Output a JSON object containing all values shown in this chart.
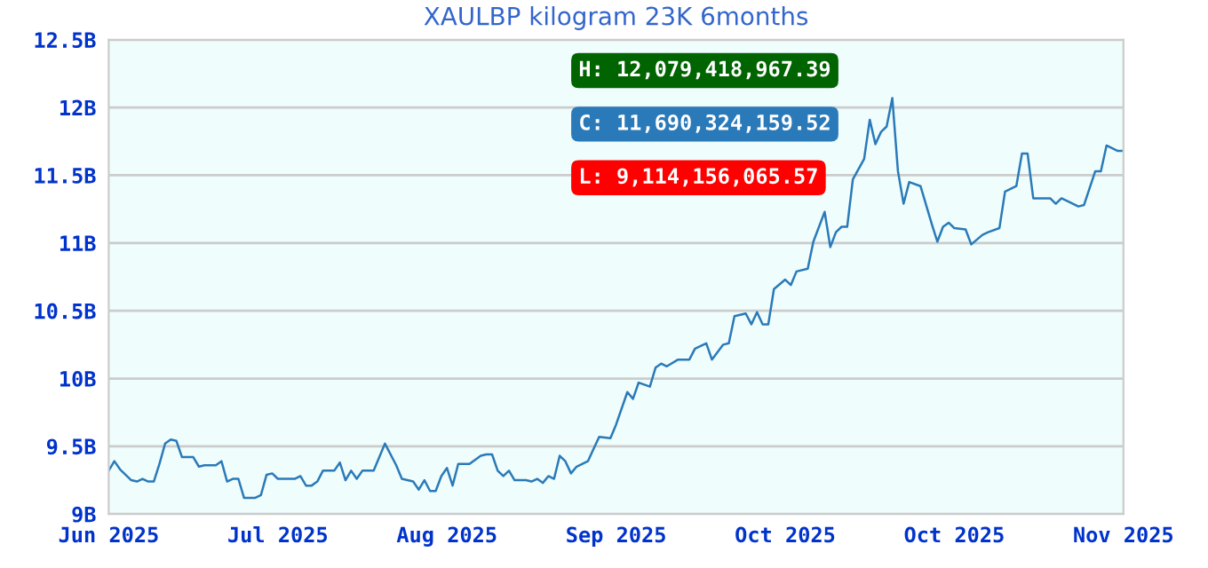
{
  "chart_data": {
    "type": "line",
    "title": "XAULBP kilogram 23K 6months",
    "x": [
      "2025-06-03",
      "2025-06-04",
      "2025-06-05",
      "2025-06-07",
      "2025-06-08",
      "2025-06-09",
      "2025-06-10",
      "2025-06-11",
      "2025-06-12",
      "2025-06-13",
      "2025-06-14",
      "2025-06-15",
      "2025-06-16",
      "2025-06-18",
      "2025-06-19",
      "2025-06-20",
      "2025-06-22",
      "2025-06-23",
      "2025-06-24",
      "2025-06-25",
      "2025-06-26",
      "2025-06-27",
      "2025-06-29",
      "2025-06-30",
      "2025-07-01",
      "2025-07-02",
      "2025-07-03",
      "2025-07-06",
      "2025-07-07",
      "2025-07-08",
      "2025-07-09",
      "2025-07-10",
      "2025-07-11",
      "2025-07-13",
      "2025-07-14",
      "2025-07-15",
      "2025-07-16",
      "2025-07-17",
      "2025-07-18",
      "2025-07-20",
      "2025-07-22",
      "2025-07-24",
      "2025-07-25",
      "2025-07-27",
      "2025-07-28",
      "2025-07-29",
      "2025-07-30",
      "2025-07-31",
      "2025-08-01",
      "2025-08-02",
      "2025-08-03",
      "2025-08-04",
      "2025-08-06",
      "2025-08-08",
      "2025-08-09",
      "2025-08-10",
      "2025-08-11",
      "2025-08-12",
      "2025-08-13",
      "2025-08-14",
      "2025-08-16",
      "2025-08-17",
      "2025-08-18",
      "2025-08-19",
      "2025-08-20",
      "2025-08-21",
      "2025-08-22",
      "2025-08-23",
      "2025-08-24",
      "2025-08-25",
      "2025-08-27",
      "2025-08-29",
      "2025-08-31",
      "2025-09-01",
      "2025-09-03",
      "2025-09-04",
      "2025-09-05",
      "2025-09-07",
      "2025-09-08",
      "2025-09-09",
      "2025-09-10",
      "2025-09-12",
      "2025-09-14",
      "2025-09-15",
      "2025-09-17",
      "2025-09-18",
      "2025-09-20",
      "2025-09-21",
      "2025-09-22",
      "2025-09-24",
      "2025-09-25",
      "2025-09-26",
      "2025-09-27",
      "2025-09-28",
      "2025-09-29",
      "2025-10-01",
      "2025-10-02",
      "2025-10-03",
      "2025-10-05",
      "2025-10-06",
      "2025-10-08",
      "2025-10-09",
      "2025-10-10",
      "2025-10-11",
      "2025-10-12",
      "2025-10-13",
      "2025-10-15",
      "2025-10-16",
      "2025-10-17",
      "2025-10-18",
      "2025-10-19",
      "2025-10-20",
      "2025-10-21",
      "2025-10-22",
      "2025-10-23",
      "2025-10-25",
      "2025-10-27",
      "2025-10-28",
      "2025-10-29",
      "2025-10-30",
      "2025-10-31",
      "2025-11-02",
      "2025-11-03",
      "2025-11-05",
      "2025-11-06",
      "2025-11-08",
      "2025-11-09",
      "2025-11-11",
      "2025-11-12",
      "2025-11-13",
      "2025-11-14",
      "2025-11-17",
      "2025-11-18",
      "2025-11-19",
      "2025-11-20",
      "2025-11-22",
      "2025-11-23",
      "2025-11-25",
      "2025-11-26",
      "2025-11-27",
      "2025-11-29",
      "2025-11-30"
    ],
    "series": [
      {
        "color": "#2a7ab9",
        "values": [
          9.32,
          9.39,
          9.33,
          9.25,
          9.24,
          9.26,
          9.24,
          9.24,
          9.37,
          9.52,
          9.55,
          9.54,
          9.42,
          9.42,
          9.35,
          9.36,
          9.36,
          9.39,
          9.24,
          9.26,
          9.26,
          9.12,
          9.12,
          9.14,
          9.29,
          9.3,
          9.26,
          9.26,
          9.28,
          9.21,
          9.21,
          9.24,
          9.32,
          9.32,
          9.38,
          9.25,
          9.32,
          9.26,
          9.32,
          9.32,
          9.52,
          9.36,
          9.26,
          9.24,
          9.18,
          9.25,
          9.17,
          9.17,
          9.28,
          9.34,
          9.21,
          9.37,
          9.37,
          9.43,
          9.44,
          9.44,
          9.32,
          9.28,
          9.32,
          9.25,
          9.25,
          9.24,
          9.26,
          9.23,
          9.28,
          9.26,
          9.43,
          9.39,
          9.3,
          9.35,
          9.39,
          9.57,
          9.56,
          9.66,
          9.9,
          9.85,
          9.97,
          9.94,
          10.08,
          10.11,
          10.09,
          10.14,
          10.14,
          10.22,
          10.26,
          10.14,
          10.25,
          10.26,
          10.46,
          10.48,
          10.4,
          10.49,
          10.4,
          10.4,
          10.66,
          10.73,
          10.69,
          10.79,
          10.81,
          11.01,
          11.23,
          10.97,
          11.08,
          11.12,
          11.12,
          11.47,
          11.62,
          11.91,
          11.73,
          11.82,
          11.86,
          12.07,
          11.53,
          11.29,
          11.45,
          11.42,
          11.14,
          11.01,
          11.12,
          11.15,
          11.11,
          11.1,
          10.99,
          11.06,
          11.08,
          11.11,
          11.38,
          11.42,
          11.66,
          11.66,
          11.33,
          11.33,
          11.29,
          11.33,
          11.31,
          11.27,
          11.28,
          11.53,
          11.53,
          11.72,
          11.68,
          11.68
        ]
      }
    ],
    "xlim": [
      "2025-06-03",
      "2025-11-30"
    ],
    "xticks": [
      {
        "value": "2025-06-03",
        "label": "Jun 2025"
      },
      {
        "value": "2025-07-03",
        "label": "Jul 2025"
      },
      {
        "value": "2025-08-02",
        "label": "Aug 2025"
      },
      {
        "value": "2025-09-01",
        "label": "Sep 2025"
      },
      {
        "value": "2025-10-01",
        "label": "Oct 2025"
      },
      {
        "value": "2025-10-31",
        "label": "Oct 2025"
      },
      {
        "value": "2025-11-30",
        "label": "Nov 2025"
      }
    ],
    "ylim": [
      9,
      12.5
    ],
    "yticks": [
      {
        "value": 9,
        "label": "9B"
      },
      {
        "value": 9.5,
        "label": "9.5B"
      },
      {
        "value": 10,
        "label": "10B"
      },
      {
        "value": 10.5,
        "label": "10.5B"
      },
      {
        "value": 11,
        "label": "11B"
      },
      {
        "value": 11.5,
        "label": "11.5B"
      },
      {
        "value": 12,
        "label": "12B"
      },
      {
        "value": 12.5,
        "label": "12.5B"
      }
    ],
    "grid": "y",
    "annotations": [
      "H: 12,079,418,967.39",
      "C: 11,690,324,159.52",
      "L: 9,114,156,065.57"
    ]
  }
}
